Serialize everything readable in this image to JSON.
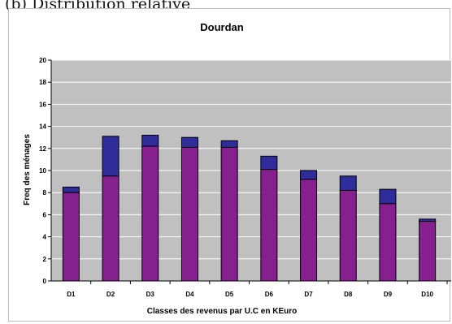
{
  "caption": "(b) Distribution relative",
  "chart_data": {
    "type": "bar",
    "title": "Dourdan",
    "xlabel": "Classes des revenus par U.C en KEuro",
    "ylabel": "Freq des ménages",
    "categories": [
      "D1",
      "D2",
      "D3",
      "D4",
      "D5",
      "D6",
      "D7",
      "D8",
      "D9",
      "D10"
    ],
    "yticks": [
      0,
      2,
      4,
      6,
      8,
      10,
      12,
      14,
      16,
      18,
      20
    ],
    "ylim": [
      0,
      20
    ],
    "grid": true,
    "series": [
      {
        "values": [
          8.0,
          9.5,
          12.2,
          12.1,
          12.1,
          10.1,
          9.2,
          8.2,
          7.0,
          5.4
        ]
      },
      {
        "values": [
          8.5,
          13.1,
          13.2,
          13.0,
          12.7,
          11.3,
          10.0,
          9.5,
          8.3,
          5.6
        ]
      }
    ],
    "colors": {
      "plot_bg": "#c0c0c0",
      "gridline": "#ffffff",
      "overlap": "#86208e",
      "higher_series_1": "#d372b4",
      "higher_series_2": "#2f2c9b",
      "outline": "#000000"
    }
  }
}
